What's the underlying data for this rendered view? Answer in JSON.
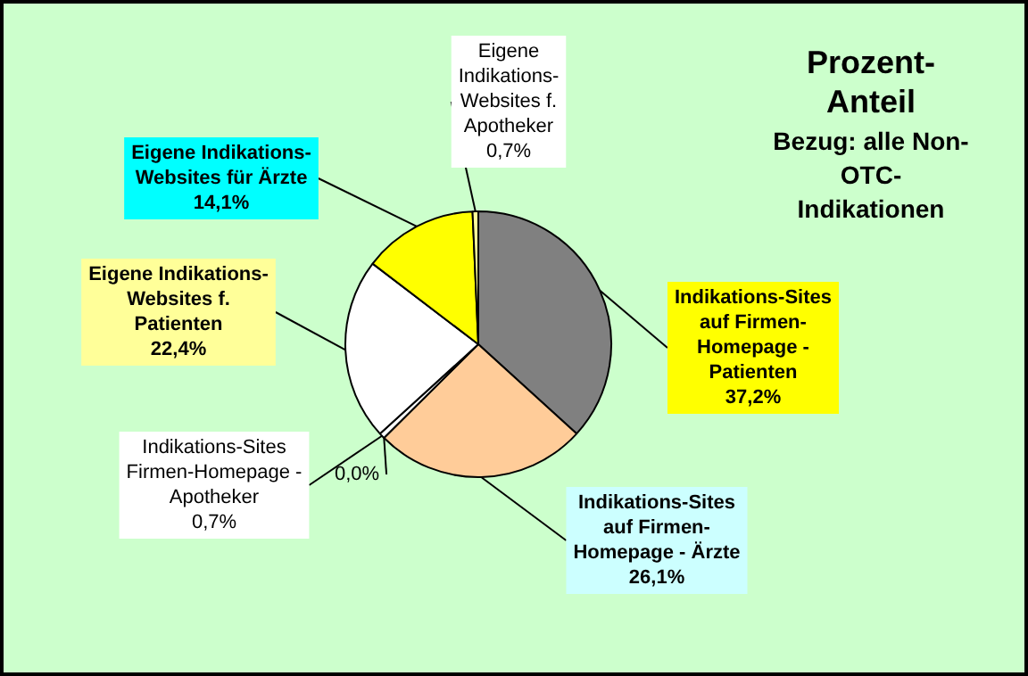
{
  "chart_data": {
    "type": "pie",
    "title": "Prozent-Anteil",
    "subtitle": "Bezug: alle Non-OTC-Indikationen",
    "categories": [
      "Indikations-Sites auf Firmen-Homepage - Patienten",
      "Indikations-Sites auf Firmen-Homepage - Ärzte",
      null,
      "Indikations-Sites Firmen-Homepage - Apotheker",
      "Eigene Indikations-Websites f. Patienten",
      "Eigene Indikations-Websites für Ärzte",
      "Eigene Indikations-Websites f. Apotheker"
    ],
    "values": [
      37.2,
      26.1,
      0.0,
      0.7,
      22.4,
      14.1,
      0.7
    ],
    "value_labels": [
      "37,2%",
      "26,1%",
      "0,0%",
      "0,7%",
      "22,4%",
      "14,1%",
      "0,7%"
    ],
    "colors": [
      "#808080",
      "#ffcc99",
      "#99ccff",
      "#ffffff",
      "#ffffff",
      "#ffff00",
      "#ffff99"
    ],
    "legend": false
  }
}
